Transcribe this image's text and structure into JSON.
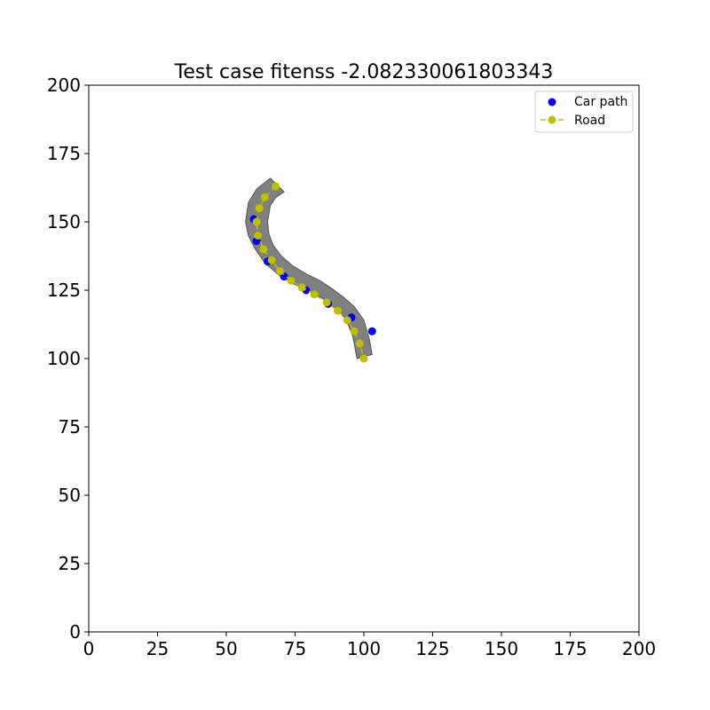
{
  "chart_data": {
    "type": "scatter",
    "title": "Test case fitenss -2.082330061803343",
    "xlim": [
      0,
      200
    ],
    "ylim": [
      0,
      200
    ],
    "xticks": [
      "0",
      "25",
      "50",
      "75",
      "100",
      "125",
      "150",
      "175",
      "200"
    ],
    "yticks": [
      "0",
      "25",
      "50",
      "75",
      "100",
      "125",
      "150",
      "175",
      "200"
    ],
    "grid": false,
    "legend_position": "top-right",
    "colors": {
      "car_path": "#0000ff",
      "road": "#bfbf00",
      "road_area": "#808080"
    },
    "series": [
      {
        "name": "Car path",
        "marker": "circle",
        "x": [
          103,
          95.5,
          87,
          79,
          71,
          65,
          61,
          60
        ],
        "y": [
          110,
          115,
          120,
          125,
          130,
          135.5,
          143,
          151
        ]
      },
      {
        "name": "Road",
        "marker": "circle",
        "line": "dashed",
        "x": [
          68,
          64,
          62,
          61,
          61.5,
          63.5,
          66.5,
          69.5,
          73.5,
          77.5,
          82,
          86.5,
          90.5,
          94,
          96.5,
          98.5,
          100
        ],
        "y": [
          163,
          159,
          155,
          150,
          145,
          140,
          136,
          132,
          128.5,
          126,
          123.5,
          120.5,
          117.5,
          114,
          110,
          105.5,
          100
        ]
      }
    ],
    "road_polygon": {
      "left_edge": {
        "x": [
          66,
          61,
          58,
          57,
          58,
          60.5,
          64,
          68.5,
          74,
          79.5,
          85,
          89.5,
          93.5,
          96,
          97.5
        ],
        "y": [
          166,
          162,
          157,
          150,
          145,
          140,
          135,
          131,
          127.5,
          125,
          122,
          118.5,
          114.5,
          108,
          100
        ]
      },
      "right_edge": {
        "x": [
          71,
          68,
          66,
          65,
          65.5,
          67,
          70,
          74,
          79,
          84,
          88.5,
          92.5,
          96.5,
          100,
          102,
          103
        ],
        "y": [
          161,
          159,
          156,
          150,
          145.5,
          141.5,
          137.5,
          134,
          131,
          128.5,
          125.5,
          122.5,
          119,
          114,
          107,
          101.5
        ]
      }
    }
  }
}
